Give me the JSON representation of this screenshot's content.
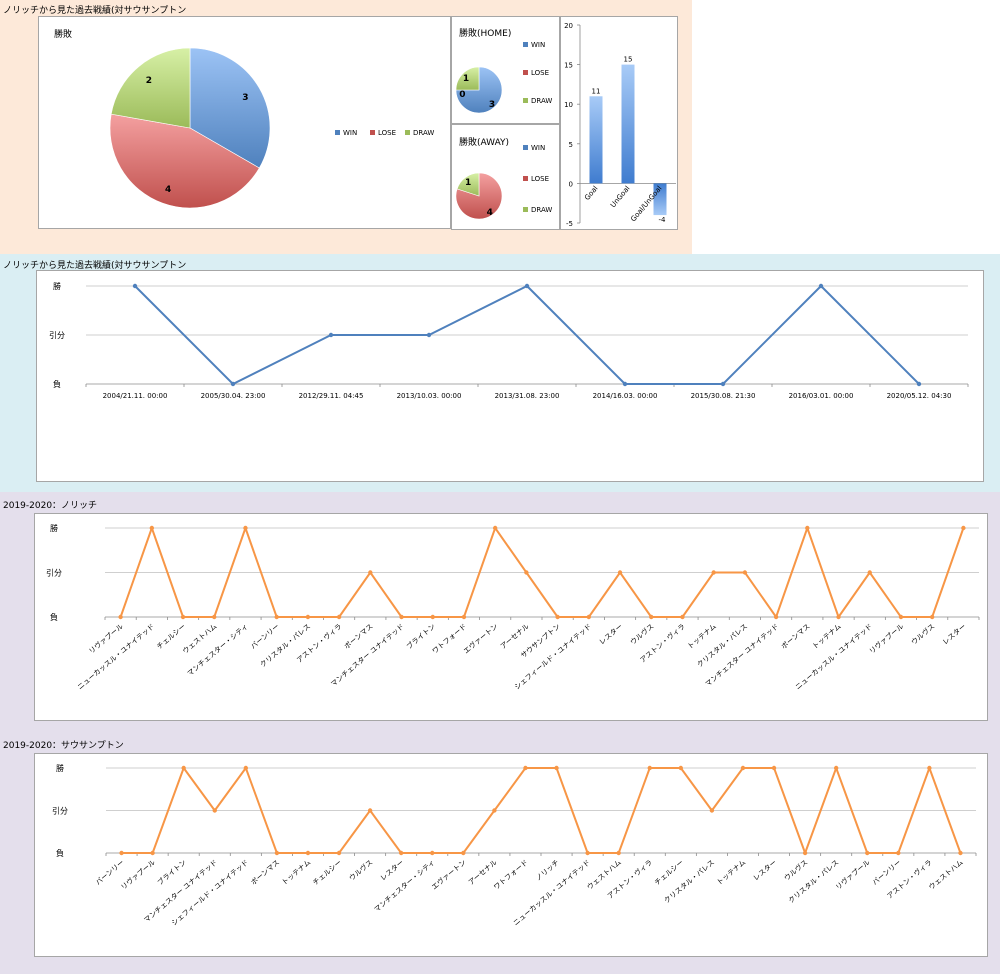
{
  "colors": {
    "win": "#4f81bd",
    "lose": "#c0504d",
    "draw": "#9bbb59",
    "line1": "#4f81bd",
    "line2": "#f79646"
  },
  "section1": {
    "title": "ノリッチから見た過去戦績(対サウサンプトン",
    "pie_total_title": "勝敗",
    "pie_home_title": "勝敗(HOME)",
    "pie_away_title": "勝敗(AWAY)"
  },
  "section2": {
    "title": "ノリッチから見た過去戦績(対サウサンプトン"
  },
  "section3": {
    "title": "2019-2020：ノリッチ"
  },
  "section4": {
    "title": "2019-2020：サウサンプトン"
  },
  "chart_data": [
    {
      "type": "pie",
      "title": "勝敗",
      "categories": [
        "WIN",
        "LOSE",
        "DRAW"
      ],
      "values": [
        3,
        4,
        2
      ],
      "legend": "right"
    },
    {
      "type": "pie",
      "title": "勝敗(HOME)",
      "categories": [
        "WIN",
        "LOSE",
        "DRAW"
      ],
      "values": [
        3,
        0,
        1
      ],
      "legend": "right"
    },
    {
      "type": "pie",
      "title": "勝敗(AWAY)",
      "categories": [
        "WIN",
        "LOSE",
        "DRAW"
      ],
      "values": [
        0,
        4,
        1
      ],
      "legend": "right"
    },
    {
      "type": "bar",
      "categories": [
        "Goal",
        "UnGoal",
        "Goal/UnGoal"
      ],
      "values": [
        11,
        15,
        -4
      ],
      "ylim": [
        -5,
        20
      ],
      "yticks": [
        "-5",
        "0",
        "5",
        "10",
        "15",
        "20"
      ],
      "grid": false
    },
    {
      "type": "line",
      "categories": [
        "2004/21.11. 00:00",
        "2005/30.04. 23:00",
        "2012/29.11. 04:45",
        "2013/10.03. 00:00",
        "2013/31.08. 23:00",
        "2014/16.03. 00:00",
        "2015/30.08. 21:30",
        "2016/03.01. 00:00",
        "2020/05.12. 04:30"
      ],
      "values": [
        2,
        0,
        1,
        1,
        2,
        0,
        0,
        2,
        0
      ],
      "ytick_labels": [
        "負",
        "引分",
        "勝"
      ],
      "grid": true
    },
    {
      "type": "line",
      "categories": [
        "リヴァプール",
        "ニューカッスル・ユナイテッド",
        "チェルシー",
        "ウェストハム",
        "マンチェスター・シティ",
        "バーンリー",
        "クリスタル・パレス",
        "アストン・ヴィラ",
        "ボーンマス",
        "マンチェスター ユナイテッド",
        "ブライトン",
        "ワトフォード",
        "エヴァートン",
        "アーセナル",
        "サウサンプトン",
        "シェフィールド・ユナイテッド",
        "レスター",
        "ウルヴス",
        "アストン・ヴィラ",
        "トッテナム",
        "クリスタル・パレス",
        "マンチェスター ユナイテッド",
        "ボーンマス",
        "トッテナム",
        "ニューカッスル・ユナイテッド",
        "リヴァプール",
        "ウルヴス",
        "レスター"
      ],
      "values": [
        0,
        2,
        0,
        0,
        2,
        0,
        0,
        0,
        1,
        0,
        0,
        0,
        2,
        1,
        0,
        0,
        1,
        0,
        0,
        1,
        1,
        0,
        2,
        0,
        1,
        0,
        0,
        2
      ],
      "ytick_labels": [
        "負",
        "引分",
        "勝"
      ],
      "grid": true
    },
    {
      "type": "line",
      "categories": [
        "バーンリー",
        "リヴァプール",
        "ブライトン",
        "マンチェスター ユナイテッド",
        "シェフィールド・ユナイテッド",
        "ボーンマス",
        "トッテナム",
        "チェルシー",
        "ウルヴス",
        "レスター",
        "マンチェスター・シティ",
        "エヴァートン",
        "アーセナル",
        "ワトフォード",
        "ノリッチ",
        "ニューカッスル・ユナイテッド",
        "ウェストハム",
        "アストン・ヴィラ",
        "チェルシー",
        "クリスタル・パレス",
        "トッテナム",
        "レスター",
        "ウルヴス",
        "クリスタル・パレス",
        "リヴァプール",
        "バーンリー",
        "アストン・ヴィラ",
        "ウェストハム"
      ],
      "values": [
        0,
        0,
        2,
        1,
        2,
        0,
        0,
        0,
        1,
        0,
        0,
        0,
        1,
        2,
        2,
        0,
        0,
        2,
        2,
        1,
        2,
        2,
        0,
        2,
        0,
        0,
        2,
        0
      ],
      "ytick_labels": [
        "負",
        "引分",
        "勝"
      ],
      "grid": true
    }
  ]
}
